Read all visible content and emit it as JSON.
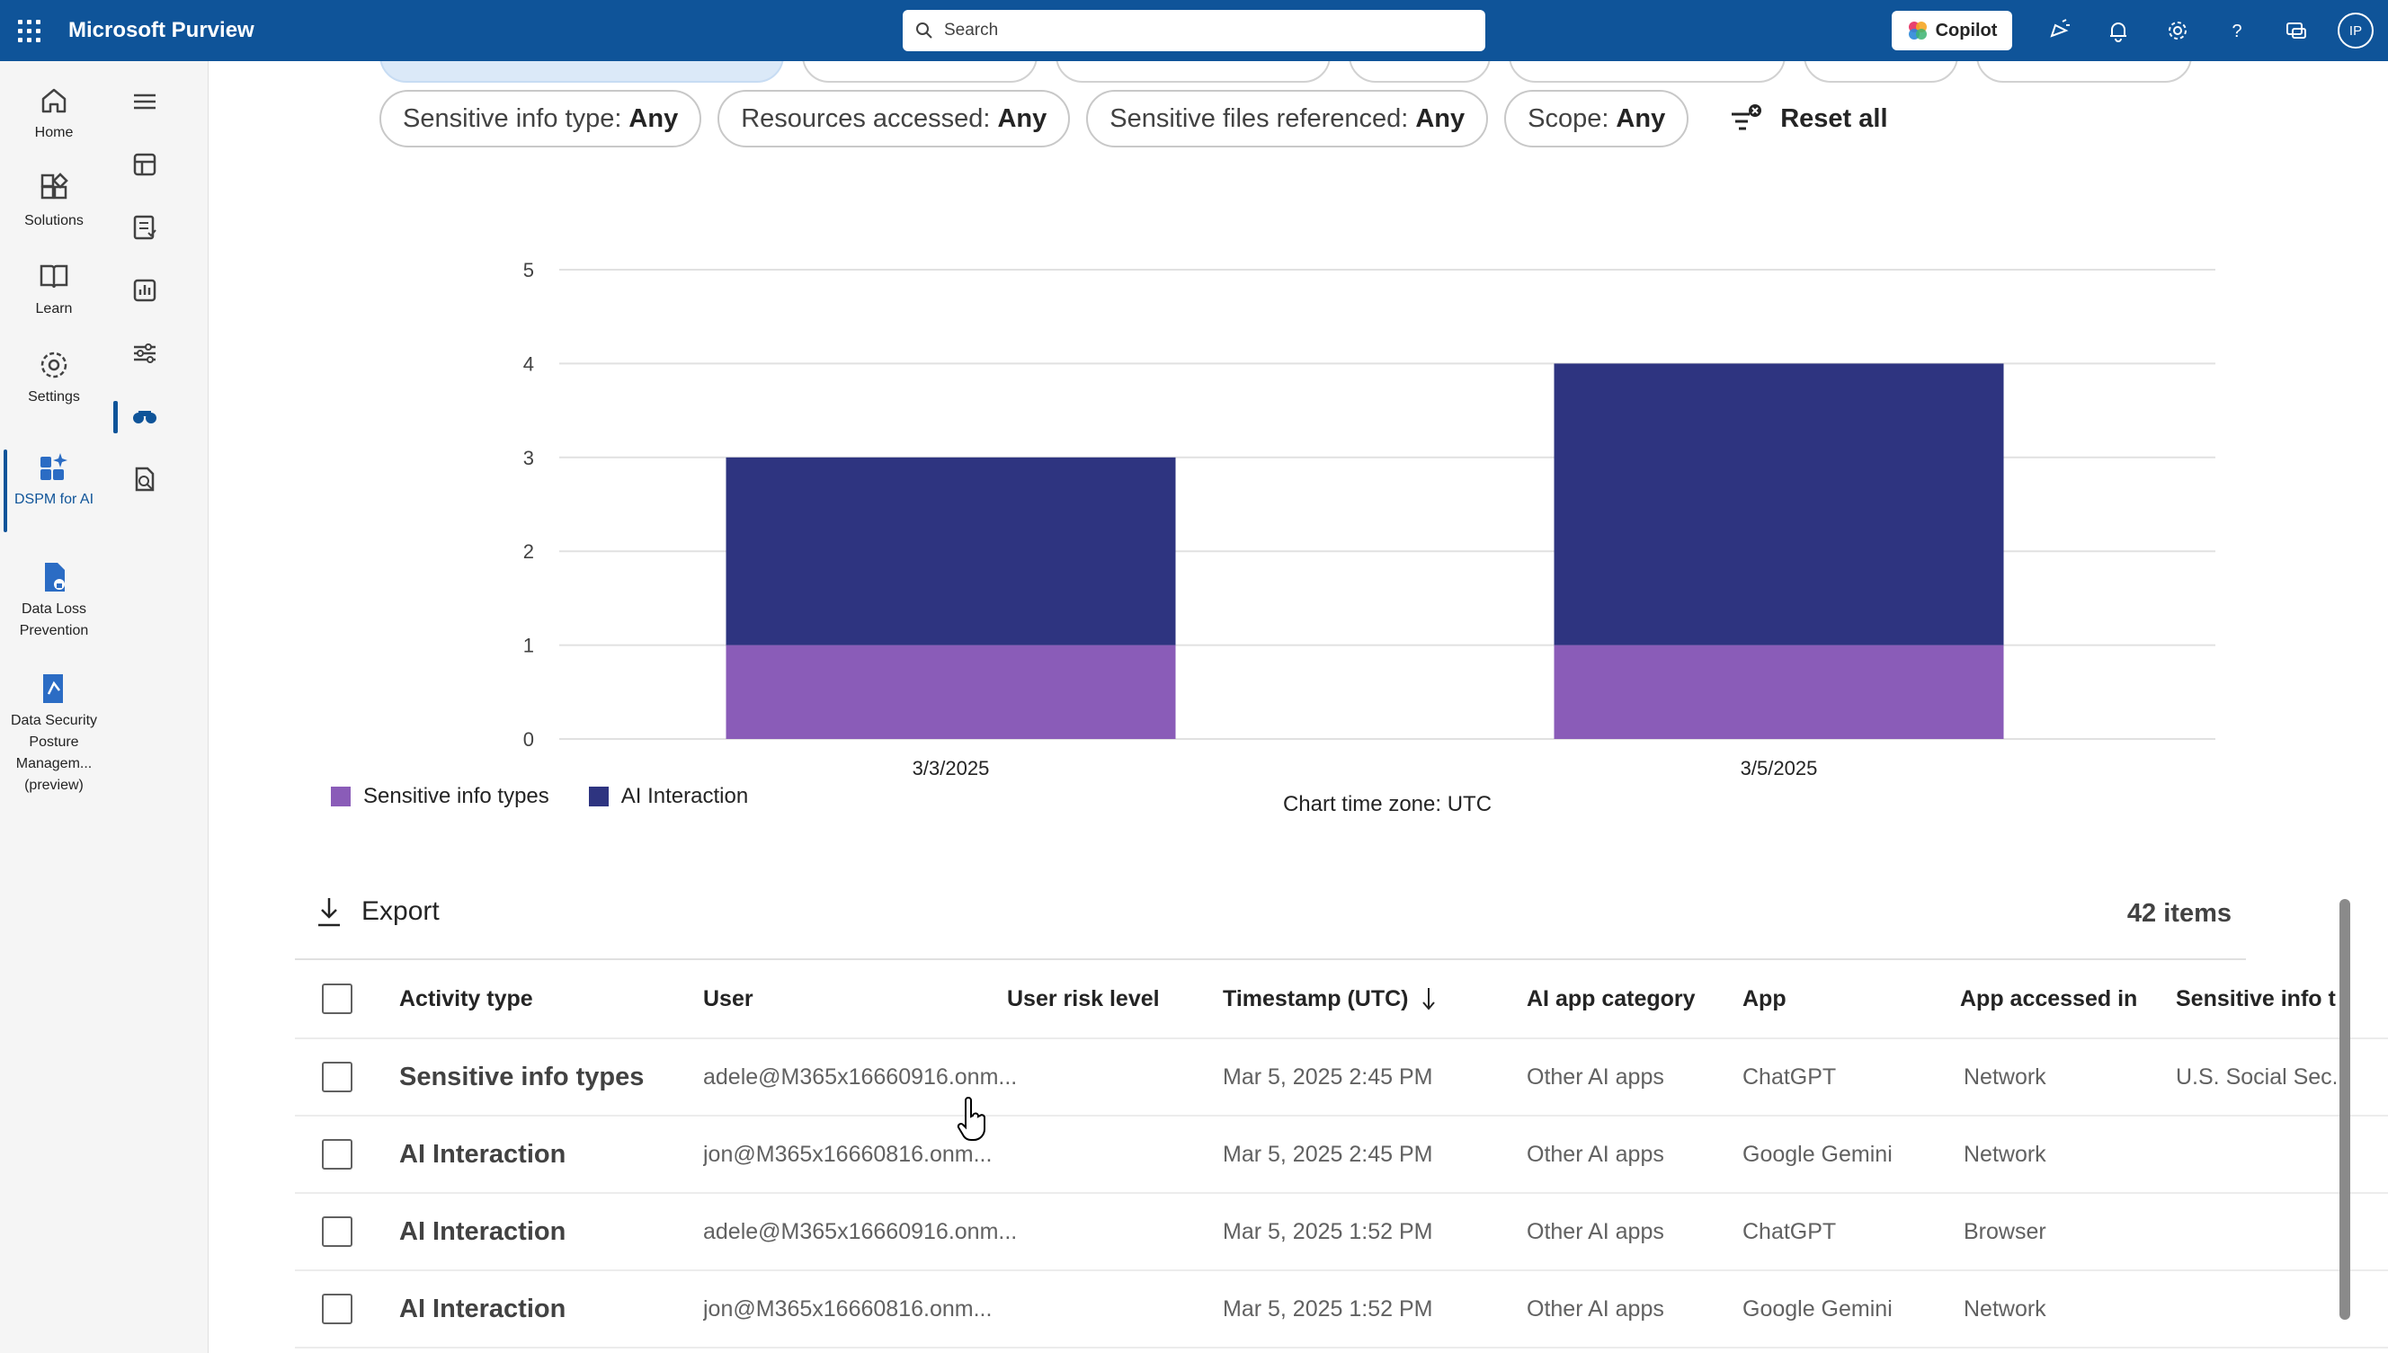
{
  "topbar": {
    "app_title": "Microsoft Purview",
    "search_placeholder": "Search",
    "copilot_label": "Copilot",
    "avatar_initials": "IP"
  },
  "rail": [
    {
      "label": "Home",
      "icon": "home-icon"
    },
    {
      "label": "Solutions",
      "icon": "solutions-icon"
    },
    {
      "label": "Learn",
      "icon": "book-icon"
    },
    {
      "label": "Settings",
      "icon": "gear-icon"
    },
    {
      "label": "DSPM for AI",
      "icon": "dspm-icon"
    },
    {
      "label": "Data Loss Prevention",
      "icon": "dlp-icon"
    },
    {
      "label": "Data Security Posture Managem... (preview)",
      "icon": "dspm-preview-icon"
    }
  ],
  "filters": [
    {
      "label": "Sensitive info type:",
      "value": "Any"
    },
    {
      "label": "Resources accessed:",
      "value": "Any"
    },
    {
      "label": "Sensitive files referenced:",
      "value": "Any"
    },
    {
      "label": "Scope:",
      "value": "Any"
    }
  ],
  "reset_label": "Reset all",
  "chart_data": {
    "type": "bar",
    "stacked": true,
    "categories": [
      "3/3/2025",
      "3/5/2025"
    ],
    "series": [
      {
        "name": "Sensitive info types",
        "values": [
          1,
          1
        ],
        "color": "#8a5cb8"
      },
      {
        "name": "AI Interaction",
        "values": [
          2,
          3
        ],
        "color": "#2e3480"
      }
    ],
    "yticks": [
      "0",
      "1",
      "2",
      "3",
      "4",
      "5"
    ],
    "ylim": [
      0,
      5
    ],
    "xlabel": "Chart time zone: UTC",
    "grid": true,
    "legend": "bottom-left"
  },
  "toolbar": {
    "export_label": "Export",
    "items_count": "42 items"
  },
  "table": {
    "columns": [
      "Activity type",
      "User",
      "User risk level",
      "Timestamp (UTC)",
      "AI app category",
      "App",
      "App accessed in",
      "Sensitive info ty"
    ],
    "rows": [
      {
        "activity": "Sensitive info types",
        "user": "adele@M365x16660916.onm...",
        "risk": "",
        "timestamp": "Mar 5, 2025 2:45 PM",
        "category": "Other AI apps",
        "app": "ChatGPT",
        "accessed_in": "Network",
        "sensitive": "U.S. Social Sec..."
      },
      {
        "activity": "AI Interaction",
        "user": "jon@M365x16660816.onm...",
        "risk": "",
        "timestamp": "Mar 5, 2025 2:45 PM",
        "category": "Other AI apps",
        "app": "Google Gemini",
        "accessed_in": "Network",
        "sensitive": ""
      },
      {
        "activity": "AI Interaction",
        "user": "adele@M365x16660916.onm...",
        "risk": "",
        "timestamp": "Mar 5, 2025 1:52 PM",
        "category": "Other AI apps",
        "app": "ChatGPT",
        "accessed_in": "Browser",
        "sensitive": ""
      },
      {
        "activity": "AI Interaction",
        "user": "jon@M365x16660816.onm...",
        "risk": "",
        "timestamp": "Mar 5, 2025 1:52 PM",
        "category": "Other AI apps",
        "app": "Google Gemini",
        "accessed_in": "Network",
        "sensitive": ""
      }
    ]
  }
}
